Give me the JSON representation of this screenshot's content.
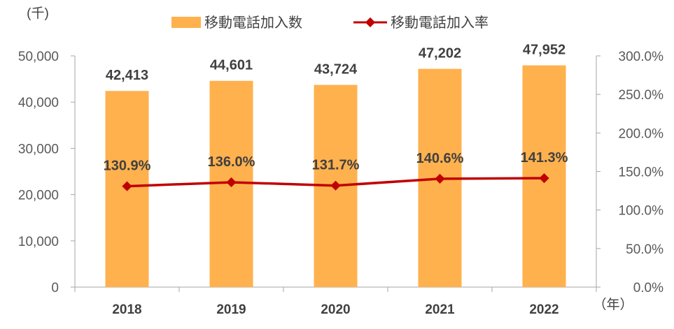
{
  "chart_data": {
    "type": "bar",
    "categories": [
      "2018",
      "2019",
      "2020",
      "2021",
      "2022"
    ],
    "series": [
      {
        "name": "移動電話加入数",
        "type": "bar",
        "axis": "left",
        "values": [
          42413,
          44601,
          43724,
          47202,
          47952
        ],
        "labels": [
          "42,413",
          "44,601",
          "43,724",
          "47,202",
          "47,952"
        ],
        "color": "#FFB14E"
      },
      {
        "name": "移動電話加入率",
        "type": "line",
        "axis": "right",
        "values": [
          130.9,
          136.0,
          131.7,
          140.6,
          141.3
        ],
        "labels": [
          "130.9%",
          "136.0%",
          "131.7%",
          "140.6%",
          "141.3%"
        ],
        "color": "#C00000"
      }
    ],
    "ylim_left": [
      0,
      50000
    ],
    "yticks_left": [
      "0",
      "10,000",
      "20,000",
      "30,000",
      "40,000",
      "50,000"
    ],
    "ylim_right": [
      0,
      300
    ],
    "yticks_right": [
      "0.0%",
      "50.0%",
      "100.0%",
      "150.0%",
      "200.0%",
      "250.0%",
      "300.0%"
    ],
    "ylabel_left": "(千)",
    "xlabel": "（年）",
    "legend_position": "top-center",
    "grid": false
  }
}
